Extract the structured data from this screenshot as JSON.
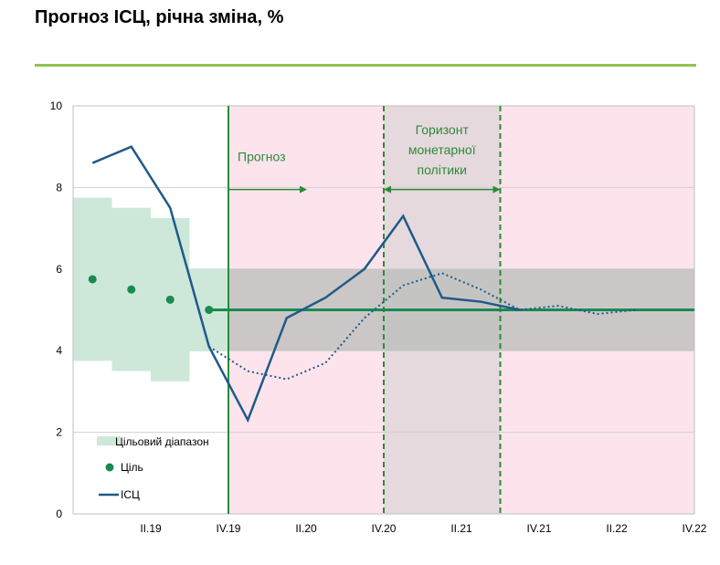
{
  "title": "Прогноз ІСЦ, річна зміна, %",
  "colors": {
    "rule": "#92c353",
    "target_band": "#cde8d8",
    "target_dot": "#1a8a52",
    "cpi_line": "#1f5a8a",
    "forecast_shade": "#fde4ec",
    "horizon_shade": "#e6d9dd",
    "grey_band": "#b8beb9",
    "green": "#2a8a3a",
    "grid": "#d0d0d0"
  },
  "annotations": {
    "forecast": "Прогноз",
    "horizon": [
      "Горизонт",
      "монетарної",
      "політики"
    ]
  },
  "chart_data": {
    "type": "line",
    "title": "Прогноз ІСЦ, річна зміна, %",
    "ylim": [
      0,
      10
    ],
    "yticks": [
      "0",
      "2",
      "4",
      "6",
      "8",
      "10"
    ],
    "x_tick_labels": [
      "II.19",
      "IV.19",
      "II.20",
      "IV.20",
      "II.21",
      "IV.21",
      "II.22",
      "IV.22"
    ],
    "x_quarters": [
      "I.19",
      "II.19",
      "III.19",
      "IV.19",
      "I.20",
      "II.20",
      "III.20",
      "IV.20",
      "I.21",
      "II.21",
      "III.21",
      "IV.21",
      "I.22",
      "II.22",
      "III.22",
      "IV.22"
    ],
    "forecast_start": "IV.19",
    "policy_horizon": [
      "IV.20",
      "III.21"
    ],
    "neutral_band": [
      4,
      6
    ],
    "legend": {
      "target_range": "Цільовий діапазон",
      "target": "Ціль",
      "cpi": "ІСЦ"
    },
    "target_range": {
      "x": [
        "I.19",
        "II.19",
        "III.19",
        "IV.19"
      ],
      "low": [
        3.75,
        3.5,
        3.25,
        4.0
      ],
      "high": [
        7.75,
        7.5,
        7.25,
        6.0
      ]
    },
    "target_points": {
      "x": [
        "I.19",
        "II.19",
        "III.19",
        "IV.19"
      ],
      "values": [
        5.75,
        5.5,
        5.25,
        5.0
      ]
    },
    "target_line": {
      "from": "IV.19",
      "to": "IV.22",
      "value": 5.0
    },
    "cpi": {
      "x": [
        "I.19",
        "II.19",
        "III.19",
        "IV.19",
        "I.20",
        "II.20",
        "III.20",
        "IV.20",
        "I.21",
        "II.21",
        "III.21",
        "IV.21"
      ],
      "values": [
        8.6,
        9.0,
        7.5,
        4.1,
        2.3,
        4.8,
        5.3,
        6.0,
        7.3,
        5.3,
        5.2,
        5.0
      ]
    },
    "cpi_dotted": {
      "x": [
        "IV.19",
        "I.20",
        "II.20",
        "III.20",
        "IV.20",
        "I.21",
        "II.21",
        "III.21",
        "IV.21",
        "I.22",
        "II.22",
        "III.22"
      ],
      "values": [
        4.1,
        3.5,
        3.3,
        3.7,
        4.8,
        5.6,
        5.9,
        5.5,
        5.0,
        5.1,
        4.9,
        5.0
      ]
    }
  }
}
